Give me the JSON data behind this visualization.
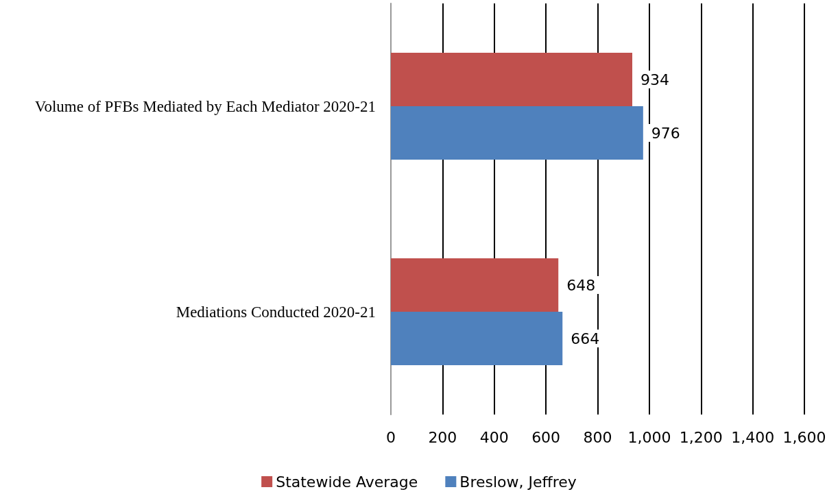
{
  "chart_data": {
    "type": "bar",
    "orientation": "horizontal",
    "categories": [
      "Volume of PFBs Mediated by Each Mediator 2020-21",
      "Mediations Conducted 2020-21"
    ],
    "series": [
      {
        "name": "Statewide Average",
        "color": "#c0504d",
        "values": [
          934,
          648
        ]
      },
      {
        "name": "Breslow, Jeffrey",
        "color": "#4f81bd",
        "values": [
          976,
          664
        ]
      }
    ],
    "xlim": [
      0,
      1600
    ],
    "xticks": [
      0,
      200,
      400,
      600,
      800,
      {
        "value": 1000,
        "label": "1,000"
      },
      {
        "value": 1200,
        "label": "1,200"
      },
      {
        "value": 1400,
        "label": "1,400"
      },
      {
        "value": 1600,
        "label": "1,600"
      }
    ],
    "grid": "x",
    "legend": "bottom",
    "data_labels": true
  }
}
